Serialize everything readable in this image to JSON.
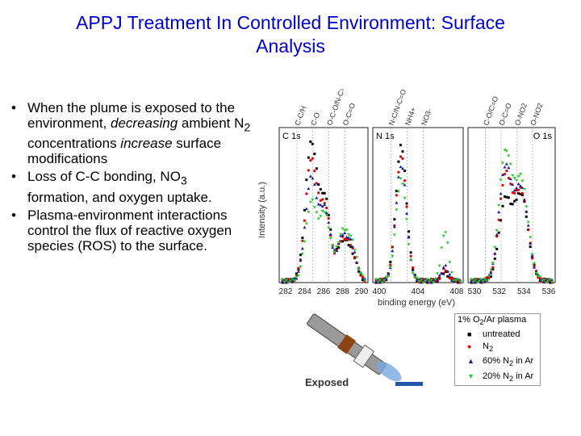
{
  "title_line1": "APPJ Treatment In Controlled Environment: Surface",
  "title_line2": "Analysis",
  "bullets": [
    {
      "parts": [
        "When the plume is exposed to the environment, ",
        "decreasing",
        " ambient N",
        "2",
        " concentrations ",
        "increase",
        " surface modifications"
      ]
    },
    {
      "parts": [
        "Loss of C-C bonding, NO",
        "3",
        " formation, and oxygen uptake."
      ]
    },
    {
      "parts": [
        "Plasma-environment interactions control the flux of reactive oxygen species (ROS) to the surface."
      ]
    }
  ],
  "colors": {
    "title": "#0000cc",
    "untreated": "#000000",
    "n2": "#dd0000",
    "n2_60": "#1a1aa0",
    "n2_20": "#22cc22"
  },
  "chart_data": {
    "type": "scatter",
    "ylabel": "Intensity (a.u.)",
    "xlabel": "binding energy (eV)",
    "panels": [
      {
        "label": "C 1s",
        "ticks": [
          "282",
          "284",
          "286",
          "288",
          "290"
        ],
        "peaks": [
          "C-C/H",
          "C-O",
          "O-C-O/N-C=O",
          "O-C=O"
        ]
      },
      {
        "label": "N 1s",
        "ticks": [
          "400",
          "404",
          "408"
        ],
        "peaks": [
          "N-C/N-C=O",
          "NH4+",
          "NO3-"
        ]
      },
      {
        "label": "O 1s",
        "ticks": [
          "530",
          "532",
          "534",
          "536"
        ],
        "peaks": [
          "C-O/C=O",
          "O-C=O",
          "O-NO2",
          "O-NO2"
        ]
      }
    ],
    "legend_title": "1% O2/Ar plasma",
    "series": [
      {
        "name": "untreated",
        "marker": "square",
        "color": "#000000",
        "C1s": [
          0.97,
          0.55,
          0.25,
          0.18
        ],
        "N1s": [
          0.95,
          0.06
        ],
        "O1s": [
          0.55,
          0.6
        ]
      },
      {
        "name": "N2",
        "marker": "circle",
        "color": "#dd0000",
        "C1s": [
          0.85,
          0.5,
          0.26,
          0.2
        ],
        "N1s": [
          0.88,
          0.08
        ],
        "O1s": [
          0.72,
          0.62
        ]
      },
      {
        "name": "60% N2 in Ar",
        "marker": "triangle-up",
        "color": "#1a1aa0",
        "C1s": [
          0.72,
          0.48,
          0.28,
          0.22
        ],
        "N1s": [
          0.82,
          0.1
        ],
        "O1s": [
          0.78,
          0.64
        ]
      },
      {
        "name": "20% N2 in Ar",
        "marker": "triangle-down",
        "color": "#22cc22",
        "C1s": [
          0.55,
          0.45,
          0.3,
          0.25
        ],
        "N1s": [
          0.72,
          0.35
        ],
        "O1s": [
          0.88,
          0.7
        ]
      }
    ]
  },
  "exposed_label": "Exposed"
}
